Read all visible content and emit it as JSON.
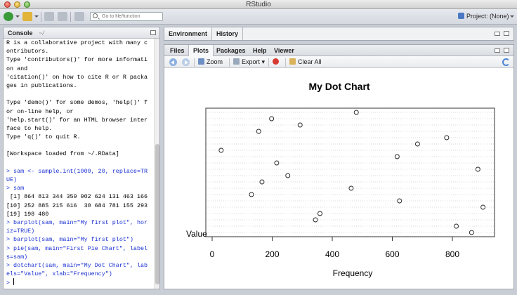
{
  "window": {
    "title": "RStudio"
  },
  "toolbar": {
    "goto_placeholder": "Go to file/function",
    "project_label": "Project: (None)"
  },
  "console": {
    "tab_label": "Console",
    "path": "~/",
    "lines": [
      {
        "type": "out",
        "text": "R is a collaborative project with many c"
      },
      {
        "type": "out",
        "text": "ontributors."
      },
      {
        "type": "out",
        "text": "Type 'contributors()' for more informati"
      },
      {
        "type": "out",
        "text": "on and"
      },
      {
        "type": "out",
        "text": "'citation()' on how to cite R or R packa"
      },
      {
        "type": "out",
        "text": "ges in publications."
      },
      {
        "type": "blank",
        "text": ""
      },
      {
        "type": "out",
        "text": "Type 'demo()' for some demos, 'help()' f"
      },
      {
        "type": "out",
        "text": "or on-line help, or"
      },
      {
        "type": "out",
        "text": "'help.start()' for an HTML browser inter"
      },
      {
        "type": "out",
        "text": "face to help."
      },
      {
        "type": "out",
        "text": "Type 'q()' to quit R."
      },
      {
        "type": "blank",
        "text": ""
      },
      {
        "type": "out",
        "text": "[Workspace loaded from ~/.RData]"
      },
      {
        "type": "blank",
        "text": ""
      },
      {
        "type": "cmd",
        "text": "> sam <- sample.int(1000, 20, replace=TR"
      },
      {
        "type": "cmd",
        "text": "UE)"
      },
      {
        "type": "cmd",
        "text": "> sam"
      },
      {
        "type": "out",
        "text": " [1] 864 813 344 359 902 624 131 463 166"
      },
      {
        "type": "out",
        "text": "[10] 252 885 215 616  30 684 781 155 293"
      },
      {
        "type": "out",
        "text": "[19] 198 480"
      },
      {
        "type": "cmd",
        "text": "> barplot(sam, main=\"My first plot\", hor"
      },
      {
        "type": "cmd",
        "text": "iz=TRUE)"
      },
      {
        "type": "cmd",
        "text": "> barplot(sam, main=\"My first plot\")"
      },
      {
        "type": "cmd",
        "text": "> pie(sam, main=\"First Pie Chart\", label"
      },
      {
        "type": "cmd",
        "text": "s=sam)"
      },
      {
        "type": "cmd",
        "text": "> dotchart(sam, main=\"My Dot Chart\", lab"
      },
      {
        "type": "cmd",
        "text": "els=\"Value\", xlab=\"Frequency\")"
      }
    ],
    "prompt": ">"
  },
  "env_pane": {
    "tabs": [
      "Environment",
      "History"
    ]
  },
  "files_pane": {
    "tabs": [
      "Files",
      "Plots",
      "Packages",
      "Help",
      "Viewer"
    ],
    "active_tab": "Plots",
    "toolbar": {
      "zoom": "Zoom",
      "export": "Export",
      "clear_all": "Clear All"
    }
  },
  "chart_data": {
    "type": "scatter",
    "title": "My Dot Chart",
    "xlabel": "Frequency",
    "point_label": "Value",
    "xlim": [
      0,
      1000
    ],
    "x_ticks": [
      "0",
      "200",
      "400",
      "600",
      "800"
    ],
    "values": [
      864,
      813,
      344,
      359,
      902,
      624,
      131,
      463,
      166,
      252,
      885,
      215,
      616,
      30,
      684,
      781,
      155,
      293,
      198,
      480
    ],
    "grid": "dotted horizontal guide lines"
  }
}
